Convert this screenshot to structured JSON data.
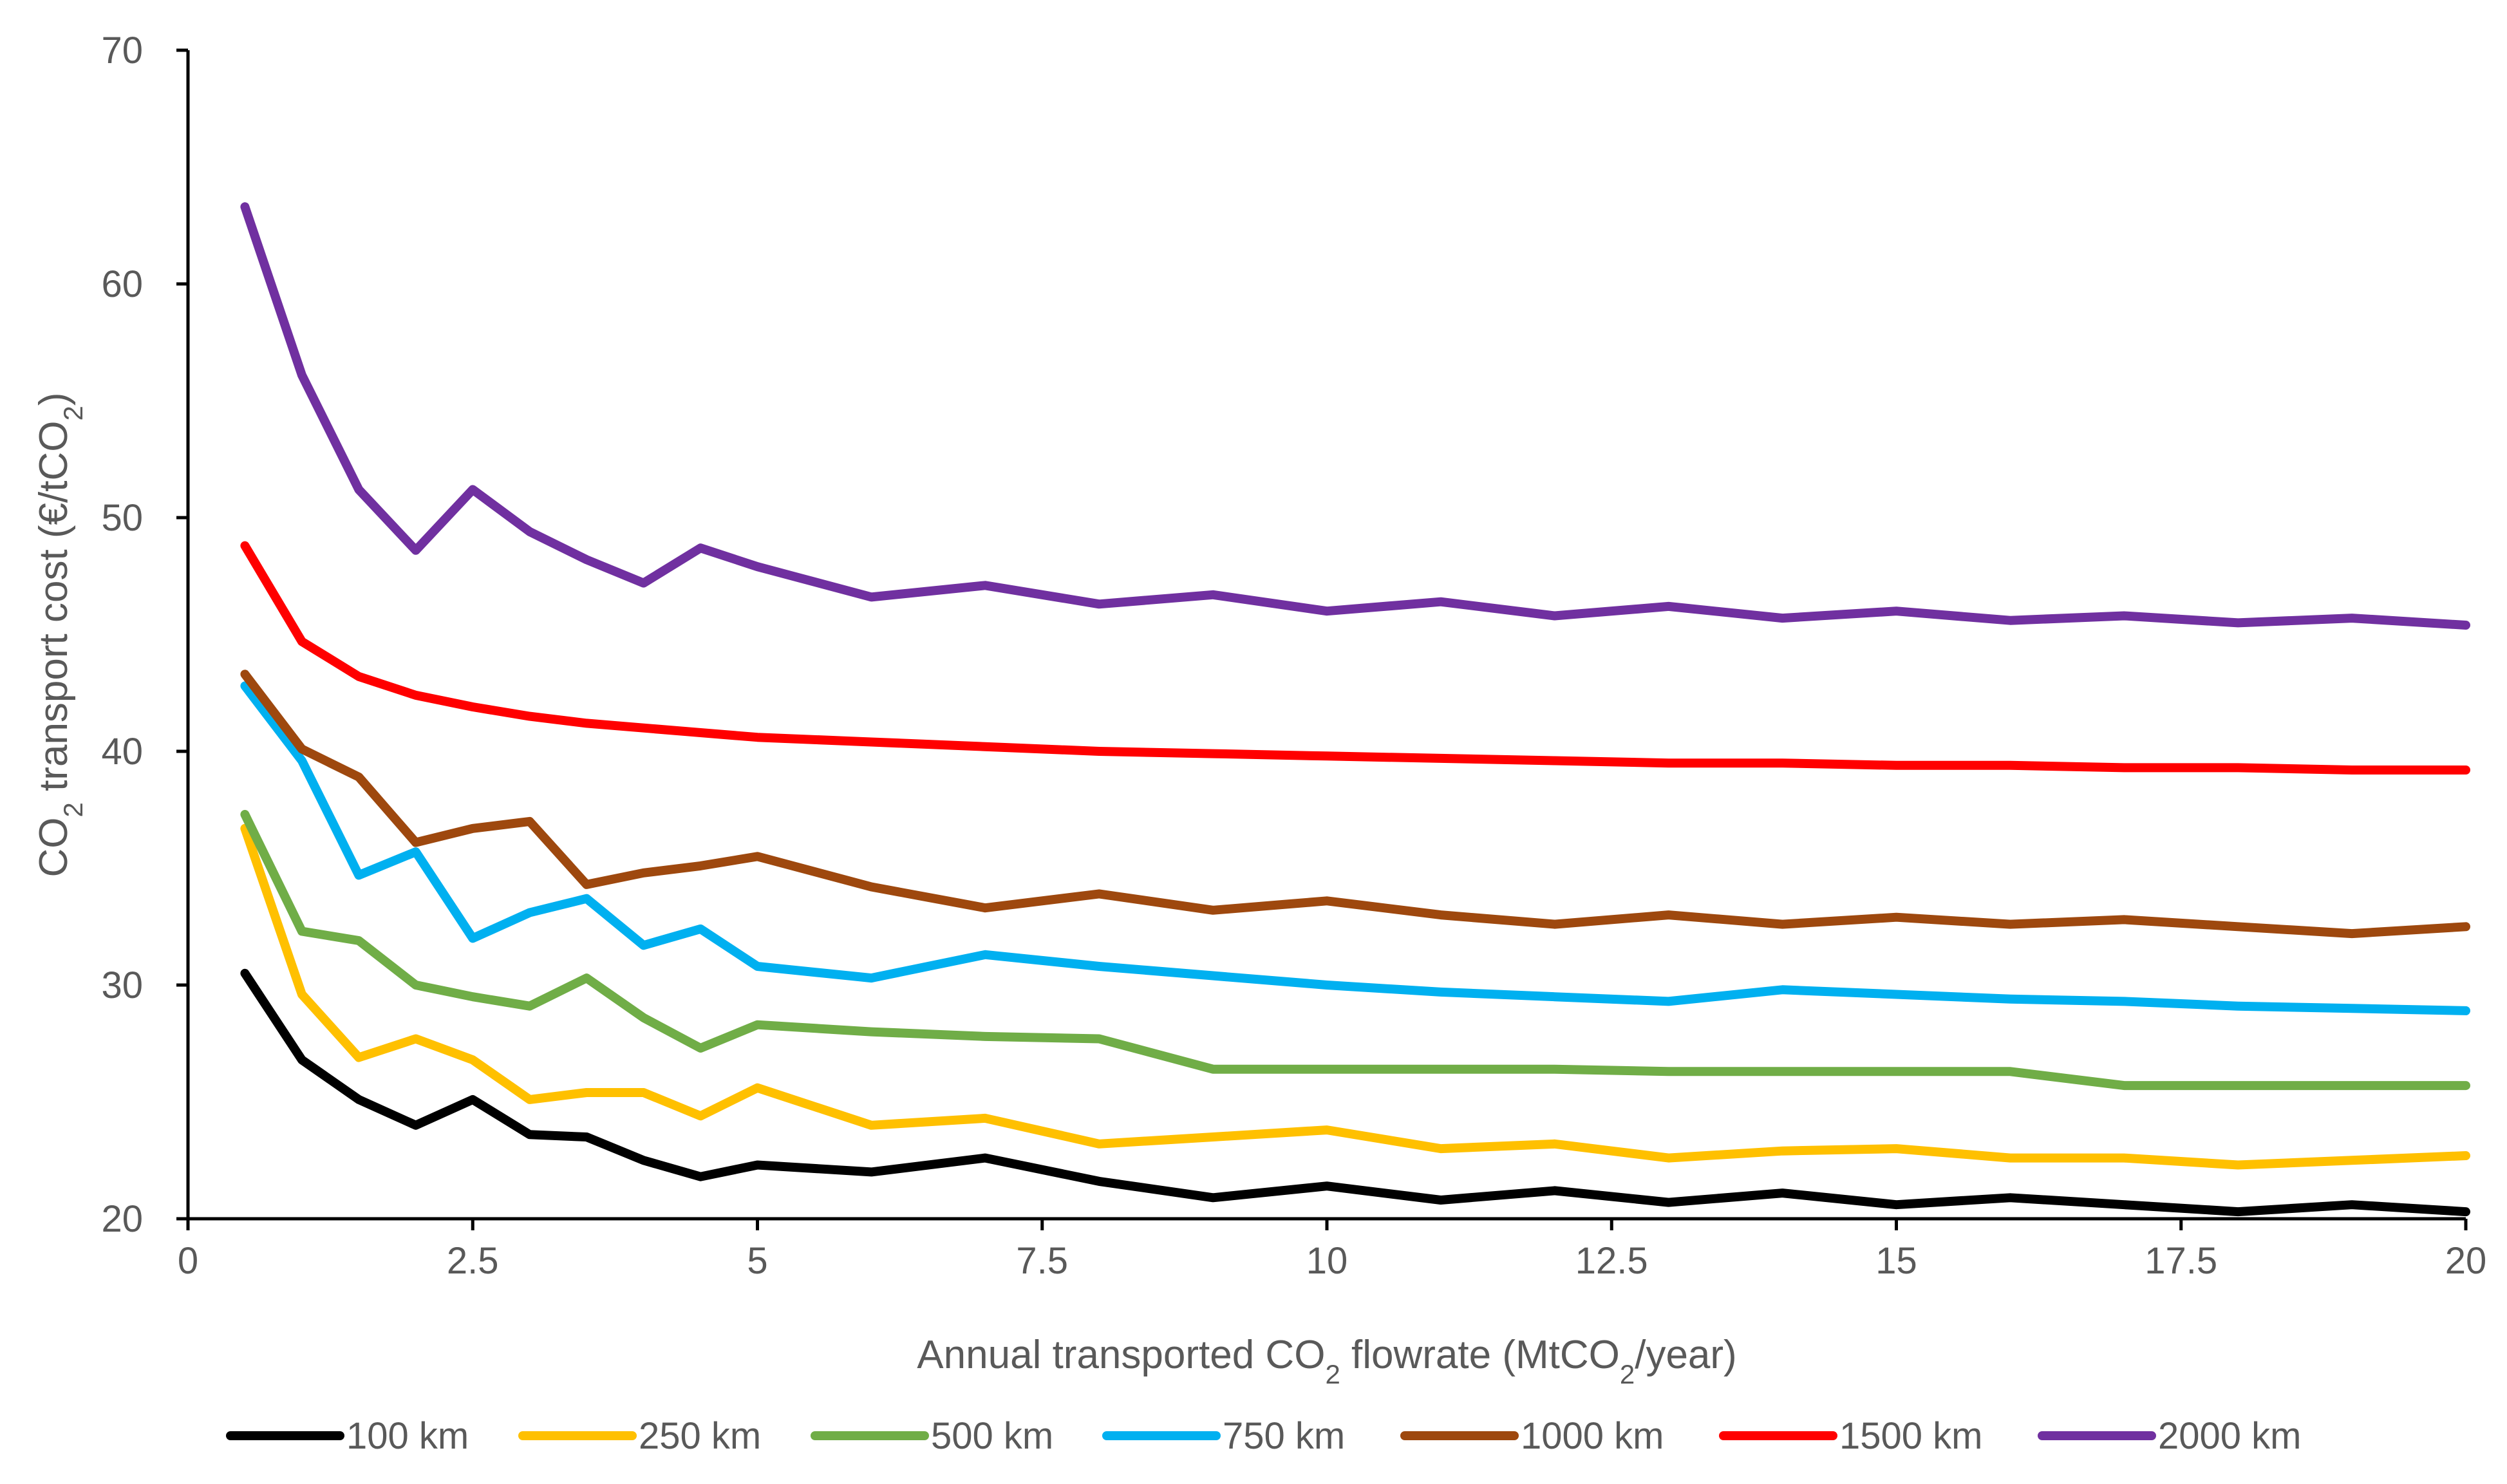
{
  "chart_data": {
    "type": "line",
    "title": "",
    "xlabel": {
      "prefix": "Annual transported CO",
      "sub1": "2",
      "middle": " flowrate (MtCO",
      "sub2": "2",
      "suffix": "/year)"
    },
    "ylabel": {
      "prefix": "CO",
      "sub1": "2",
      "middle": " transport cost (€/tCO",
      "sub2": "2",
      "suffix": ")"
    },
    "xlim": [
      0,
      20
    ],
    "ylim": [
      20,
      70
    ],
    "xticks": [
      "0",
      "2.5",
      "5",
      "7.5",
      "10",
      "12.5",
      "15",
      "17.5",
      "20"
    ],
    "yticks": [
      "20",
      "30",
      "40",
      "50",
      "60",
      "70"
    ],
    "grid": false,
    "legend_position": "bottom",
    "x": [
      0.5,
      1,
      1.5,
      2,
      2.5,
      3,
      3.5,
      4,
      4.5,
      5,
      6,
      7,
      8,
      9,
      10,
      11,
      12,
      13,
      14,
      15,
      16,
      17,
      18,
      19,
      20
    ],
    "series": [
      {
        "name": "100 km",
        "color": "#000000",
        "values": [
          30.5,
          26.8,
          25.1,
          24.0,
          25.1,
          23.6,
          23.5,
          22.5,
          21.8,
          22.3,
          22.0,
          22.6,
          21.6,
          20.9,
          21.4,
          20.8,
          21.2,
          20.7,
          21.1,
          20.6,
          20.9,
          20.6,
          20.3,
          20.6,
          20.3
        ]
      },
      {
        "name": "250 km",
        "color": "#FFC000",
        "values": [
          36.7,
          29.6,
          26.9,
          27.7,
          26.8,
          25.1,
          25.4,
          25.4,
          24.4,
          25.6,
          24.0,
          24.3,
          23.2,
          23.5,
          23.8,
          23.0,
          23.2,
          22.6,
          22.9,
          23.0,
          22.6,
          22.6,
          22.3,
          22.5,
          22.7
        ]
      },
      {
        "name": "500 km",
        "color": "#70AD47",
        "values": [
          37.3,
          32.3,
          31.9,
          30.0,
          29.5,
          29.1,
          30.3,
          28.6,
          27.3,
          28.3,
          28.0,
          27.8,
          27.7,
          26.4,
          26.4,
          26.4,
          26.4,
          26.3,
          26.3,
          26.3,
          26.3,
          25.7,
          25.7,
          25.7,
          25.7
        ]
      },
      {
        "name": "750 km",
        "color": "#00B0F0",
        "values": [
          42.8,
          39.6,
          34.7,
          35.7,
          32.0,
          33.1,
          33.7,
          31.7,
          32.4,
          30.8,
          30.3,
          31.3,
          30.8,
          30.4,
          30.0,
          29.7,
          29.5,
          29.3,
          29.8,
          29.6,
          29.4,
          29.3,
          29.1,
          29.0,
          28.9
        ]
      },
      {
        "name": "1000 km",
        "color": "#9E480E",
        "values": [
          43.3,
          40.1,
          38.9,
          36.1,
          36.7,
          37.0,
          34.3,
          34.8,
          35.1,
          35.5,
          34.2,
          33.3,
          33.9,
          33.2,
          33.6,
          33.0,
          32.6,
          33.0,
          32.6,
          32.9,
          32.6,
          32.8,
          32.5,
          32.2,
          32.5
        ]
      },
      {
        "name": "1500 km",
        "color": "#FF0000",
        "values": [
          48.8,
          44.7,
          43.2,
          42.4,
          41.9,
          41.5,
          41.2,
          41.0,
          40.8,
          40.6,
          40.4,
          40.2,
          40.0,
          39.9,
          39.8,
          39.7,
          39.6,
          39.5,
          39.5,
          39.4,
          39.4,
          39.3,
          39.3,
          39.2,
          39.2
        ]
      },
      {
        "name": "2000 km",
        "color": "#7030A0",
        "values": [
          63.3,
          56.1,
          51.2,
          48.6,
          51.2,
          49.4,
          48.2,
          47.2,
          48.7,
          47.9,
          46.6,
          47.1,
          46.3,
          46.7,
          46.0,
          46.4,
          45.8,
          46.2,
          45.7,
          46.0,
          45.6,
          45.8,
          45.5,
          45.7,
          45.4
        ]
      }
    ]
  }
}
